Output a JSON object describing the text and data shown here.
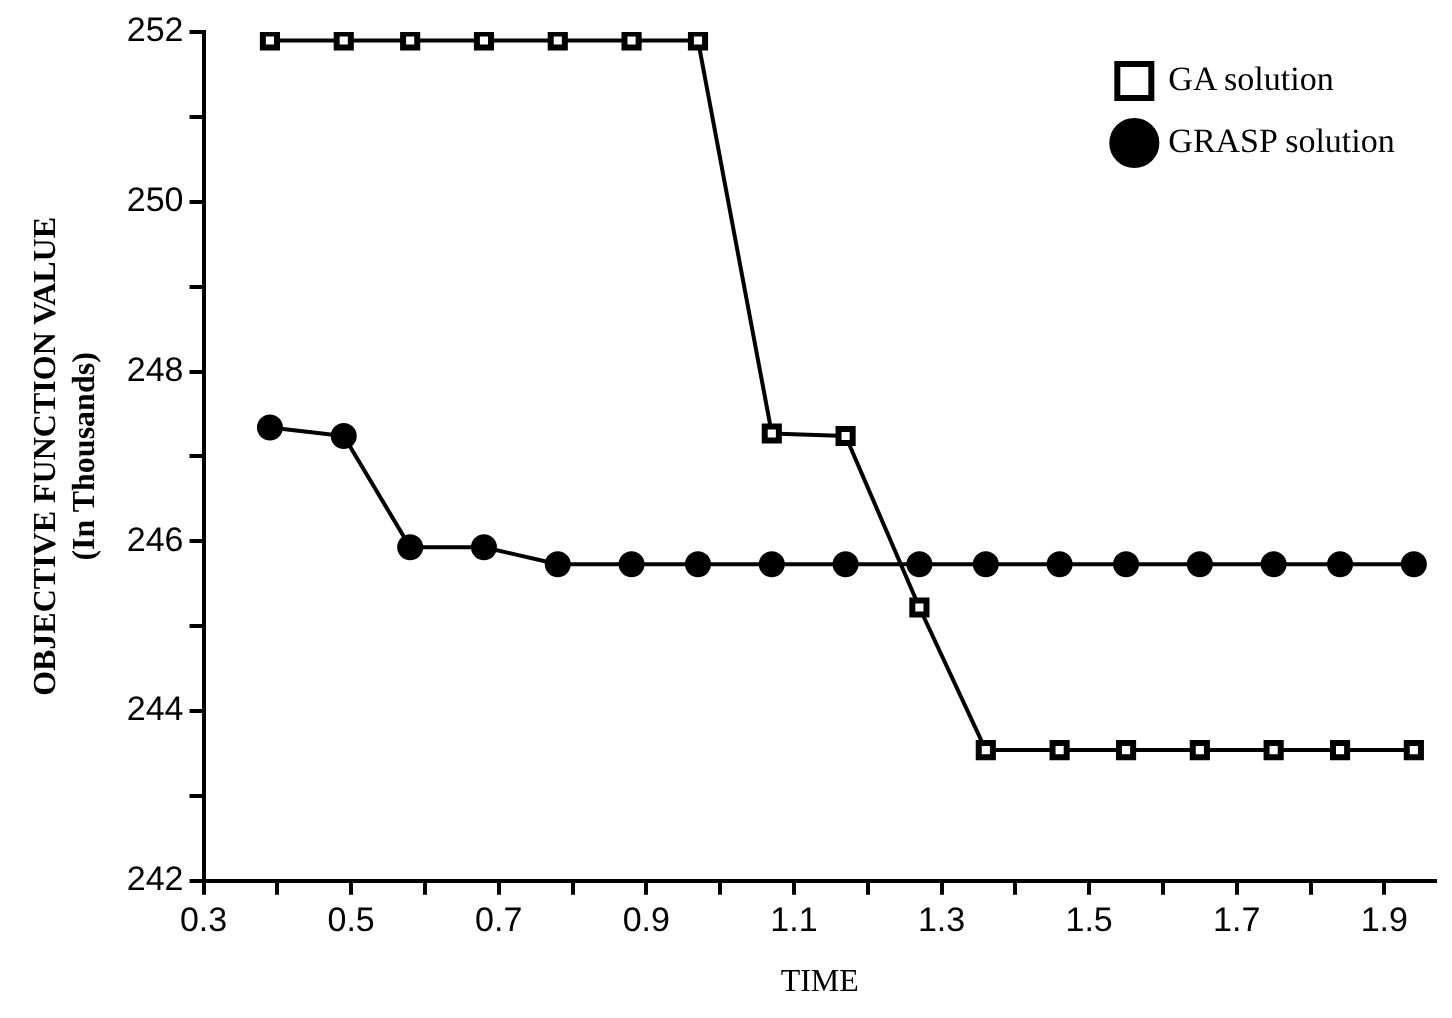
{
  "chart_data": {
    "type": "line",
    "xlabel": "TIME",
    "ylabel": "OBJECTIVE FUNCTION VALUE\n(In Thousands)",
    "xlim": [
      0.3,
      1.97
    ],
    "xticks": [
      0.3,
      {
        "value": 0.4,
        "label": null
      },
      0.5,
      {
        "value": 0.6,
        "label": null
      },
      0.7,
      {
        "value": 0.8,
        "label": null
      },
      0.9,
      {
        "value": 1.0,
        "label": null
      },
      1.1,
      {
        "value": 1.2,
        "label": null
      },
      1.3,
      {
        "value": 1.4,
        "label": null
      },
      1.5,
      {
        "value": 1.6,
        "label": null
      },
      1.7,
      {
        "value": 1.8,
        "label": null
      },
      1.9
    ],
    "ylim": [
      242,
      252
    ],
    "yticks": [
      242,
      {
        "value": 243,
        "label": null
      },
      244,
      {
        "value": 245,
        "label": null
      },
      246,
      {
        "value": 247,
        "label": null
      },
      248,
      {
        "value": 249,
        "label": null
      },
      250,
      {
        "value": 251,
        "label": null
      },
      252
    ],
    "x": [
      0.39,
      0.49,
      0.58,
      0.68,
      0.78,
      0.88,
      0.97,
      1.07,
      1.17,
      1.27,
      1.36,
      1.46,
      1.55,
      1.65,
      1.75,
      1.84,
      1.94
    ],
    "series": [
      {
        "name": "GA solution",
        "color": "#000000",
        "marker": "square",
        "values": [
          251.9,
          251.9,
          251.9,
          251.9,
          251.9,
          251.9,
          251.9,
          247.27,
          247.24,
          245.22,
          243.54,
          243.54,
          243.54,
          243.54,
          243.54,
          243.54,
          243.54
        ]
      },
      {
        "name": "GRASP solution",
        "color": "#000000",
        "marker": "circle",
        "values": [
          247.34,
          247.24,
          245.93,
          245.93,
          245.73,
          245.73,
          245.73,
          245.73,
          245.73,
          245.73,
          245.73,
          245.73,
          245.73,
          245.73,
          245.73,
          245.73,
          245.73
        ]
      }
    ],
    "grid": false,
    "legend": "top right",
    "line_style": "solid"
  }
}
